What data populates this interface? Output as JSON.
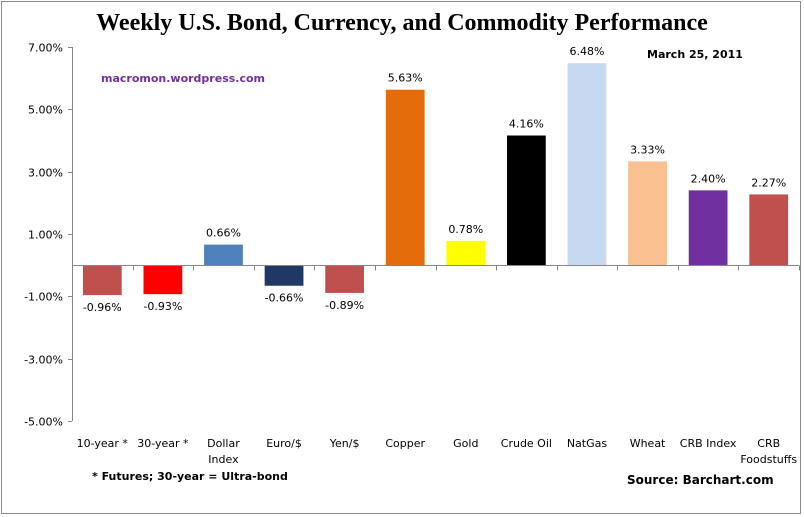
{
  "chart_data": {
    "type": "bar",
    "title": "Weekly U.S. Bond, Currency, and Commodity Performance",
    "xlabel": "",
    "ylabel": "",
    "ylim": [
      -5,
      7
    ],
    "yticks": [
      7,
      5,
      3,
      1,
      -1,
      -3,
      -5
    ],
    "ytick_labels": [
      "7.00%",
      "5.00%",
      "3.00%",
      "1.00%",
      "-1.00%",
      "-3.00%",
      "-5.00%"
    ],
    "grid": false,
    "legend": "none",
    "categories": [
      [
        "10-year *"
      ],
      [
        "30-year *"
      ],
      [
        "Dollar",
        "Index"
      ],
      [
        "Euro/$"
      ],
      [
        "Yen/$"
      ],
      [
        "Copper"
      ],
      [
        "Gold"
      ],
      [
        "Crude Oil"
      ],
      [
        "NatGas"
      ],
      [
        "Wheat"
      ],
      [
        "CRB Index"
      ],
      [
        "CRB",
        "Foodstuffs"
      ]
    ],
    "values": [
      -0.96,
      -0.93,
      0.66,
      -0.66,
      -0.89,
      5.63,
      0.78,
      4.16,
      6.48,
      3.33,
      2.4,
      2.27
    ],
    "data_labels": [
      "-0.96%",
      "-0.93%",
      "0.66%",
      "-0.66%",
      "-0.89%",
      "5.63%",
      "0.78%",
      "4.16%",
      "6.48%",
      "3.33%",
      "2.40%",
      "2.27%"
    ],
    "colors": [
      "#c0504d",
      "#ff0000",
      "#4f81bd",
      "#1f3864",
      "#c0504d",
      "#e46c0a",
      "#ffff00",
      "#000000",
      "#c6d9f1",
      "#fac090",
      "#7030a0",
      "#c0504d"
    ],
    "annotations": {
      "watermark": "macromon.wordpress.com",
      "date": "March  25, 2011",
      "footnote": "* Futures; 30-year = Ultra-bond",
      "source": "Source:  Barchart.com"
    }
  }
}
